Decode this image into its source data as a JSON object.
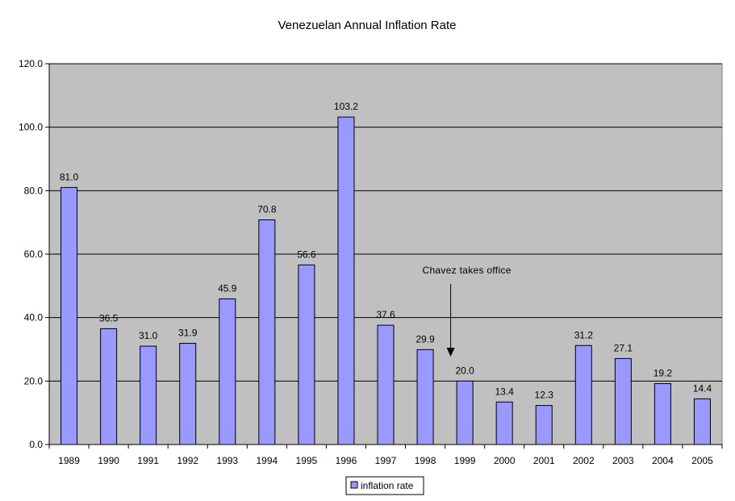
{
  "chart_data": {
    "type": "bar",
    "title": "Venezuelan Annual Inflation Rate",
    "categories": [
      "1989",
      "1990",
      "1991",
      "1992",
      "1993",
      "1994",
      "1995",
      "1996",
      "1997",
      "1998",
      "1999",
      "2000",
      "2001",
      "2002",
      "2003",
      "2004",
      "2005"
    ],
    "series": [
      {
        "name": "inflation rate",
        "values": [
          81.0,
          36.5,
          31.0,
          31.9,
          45.9,
          70.8,
          56.6,
          103.2,
          37.6,
          29.9,
          20.0,
          13.4,
          12.3,
          31.2,
          27.1,
          19.2,
          14.4
        ],
        "labels": [
          "81.0",
          "36.5",
          "31.0",
          "31.9",
          "45.9",
          "70.8",
          "56.6",
          "103.2",
          "37.6",
          "29.9",
          "20.0",
          "13.4",
          "12.3",
          "31.2",
          "27.1",
          "19.2",
          "14.4"
        ]
      }
    ],
    "ylim": [
      0,
      120
    ],
    "yticks": [
      "0.0",
      "20.0",
      "40.0",
      "60.0",
      "80.0",
      "100.0",
      "120.0"
    ],
    "xlabel": "",
    "ylabel": "",
    "grid": true,
    "legend_position": "bottom",
    "annotation": {
      "text": "Chavez takes office",
      "category": "1999"
    },
    "colors": {
      "bar": "#9999ff",
      "plot_bg": "#c0c0c0",
      "gridline": "#000000"
    }
  }
}
